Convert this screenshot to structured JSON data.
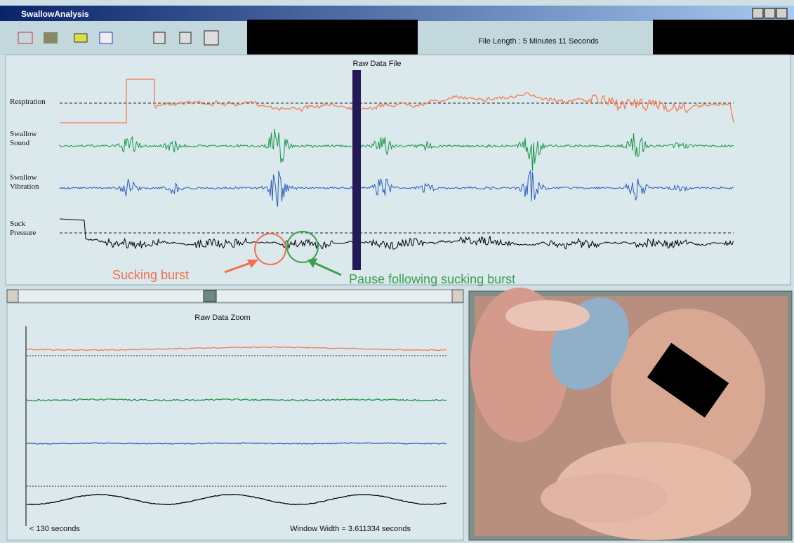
{
  "window": {
    "title": "SwallowAnalysis"
  },
  "toolbar": {
    "file_length": "File Length : 5 Minutes 11 Seconds"
  },
  "raw_data_file": {
    "title": "Raw Data File",
    "channels": [
      [
        "Respiration"
      ],
      [
        "Swallow",
        "Sound"
      ],
      [
        "Swallow",
        "Vibration"
      ],
      [
        "Suck",
        "Pressure"
      ]
    ]
  },
  "annotations": {
    "sucking_burst": "Sucking burst",
    "pause": "Pause following sucking burst"
  },
  "zoom": {
    "title": "Raw Data Zoom",
    "position": "< 130 seconds",
    "window_width": "Window Width = 3.611334 seconds"
  }
}
